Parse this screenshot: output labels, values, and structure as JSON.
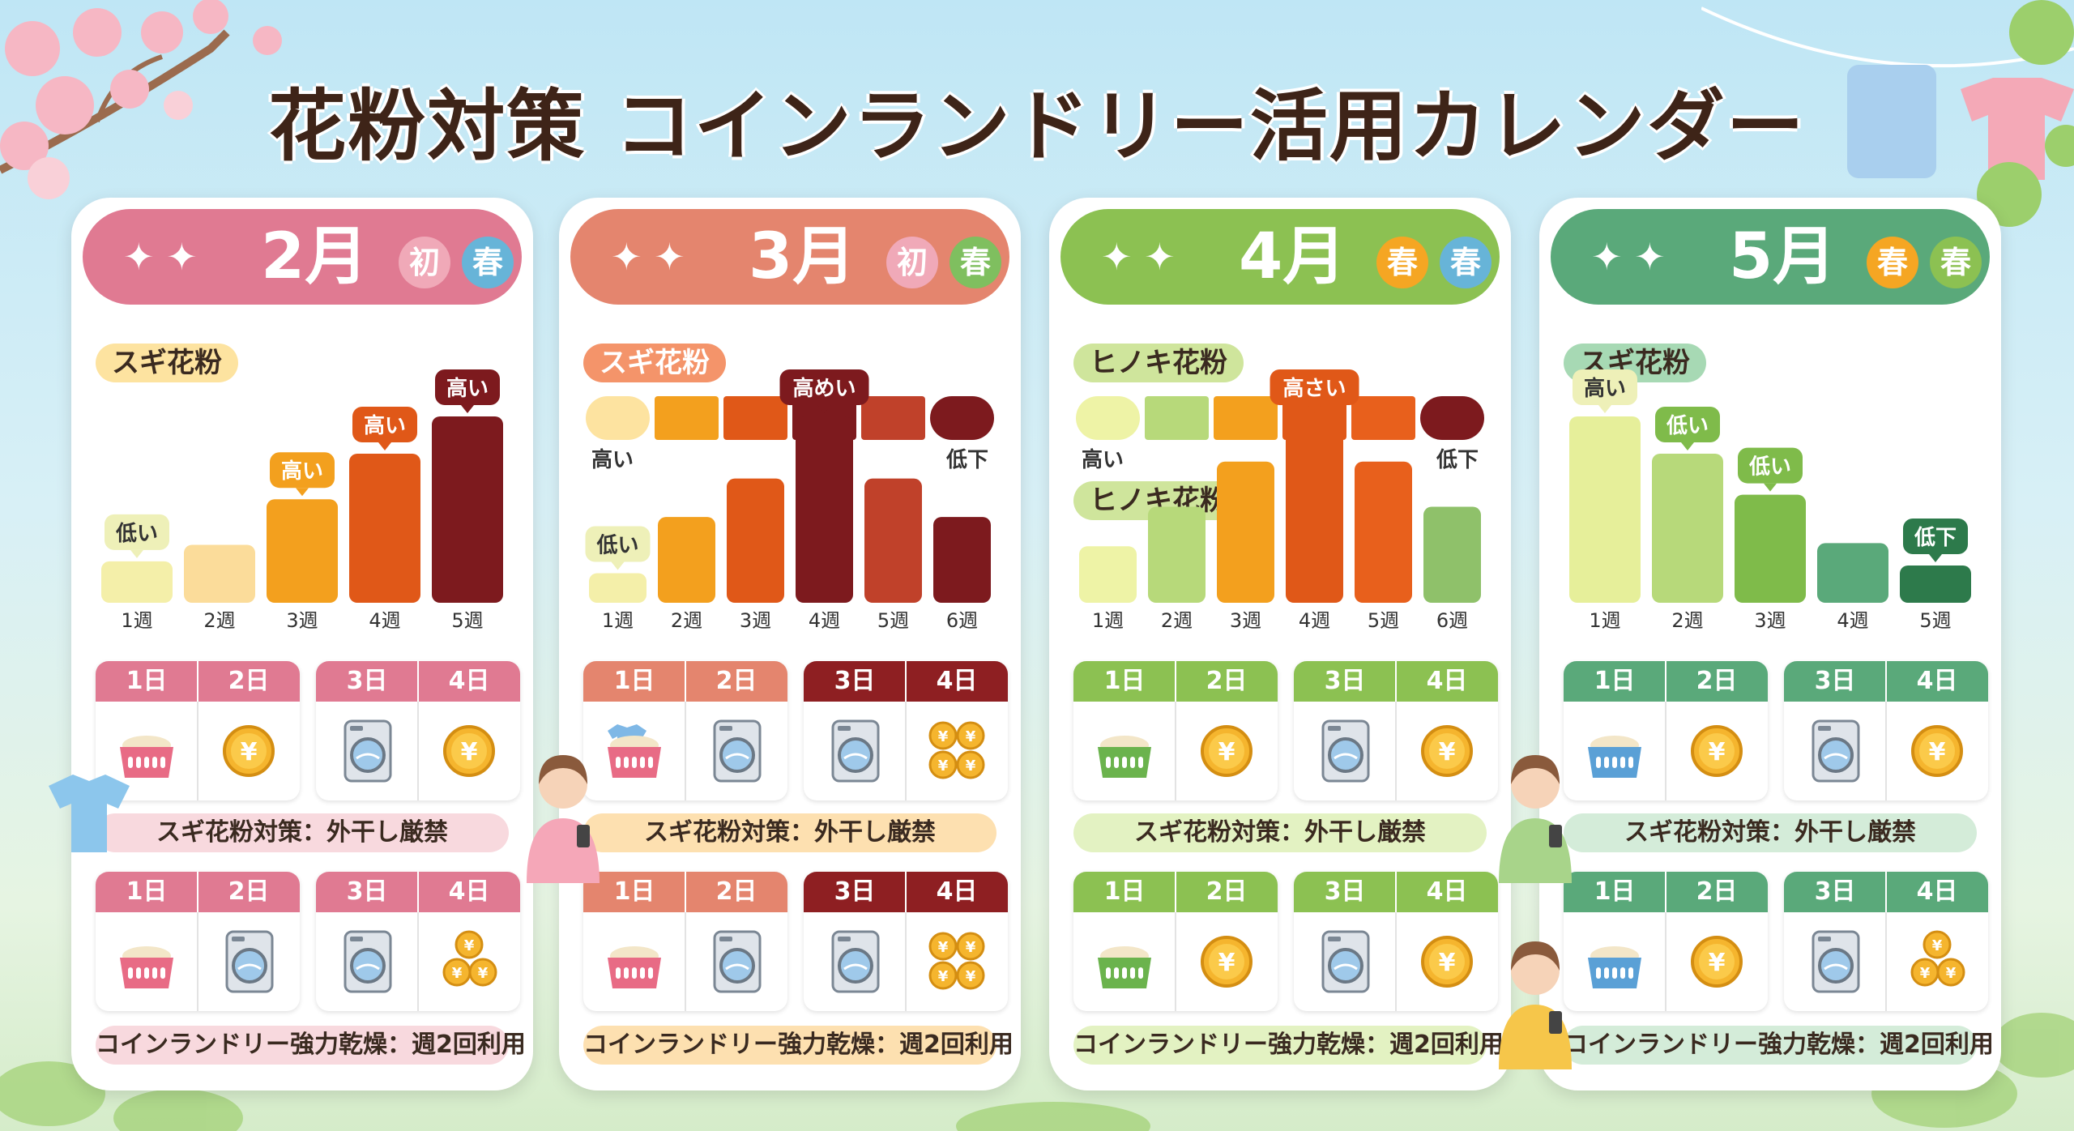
{
  "title": "花粉対策 コインランドリー活用カレンダー",
  "cards": [
    {
      "month": "2月",
      "badges": [
        "初",
        "春"
      ],
      "header_color": "#e07a92",
      "badge_colors": [
        "#f0a9b8",
        "#67b4d8"
      ],
      "pollen_labels": [
        "スギ花粉"
      ],
      "chart_data": {
        "type": "bar",
        "categories": [
          "1週",
          "2週",
          "3週",
          "4週",
          "5週"
        ],
        "values": [
          1,
          1.4,
          2.5,
          3.6,
          4.5
        ],
        "data_labels": [
          "低い",
          "",
          "高い",
          "高い",
          "高い"
        ],
        "colors": [
          "#f4efa9",
          "#fbdc9a",
          "#f3a01e",
          "#e05818",
          "#7d1a1e"
        ]
      },
      "grid_top": {
        "left_days": [
          "1日",
          "2日"
        ],
        "right_days": [
          "3日",
          "4日"
        ],
        "icons": [
          "basket",
          "coin",
          "washer",
          "coin"
        ]
      },
      "grid_top_colors": [
        "#e07a92",
        "#e07a92"
      ],
      "banner_top": "スギ花粉対策：外干し厳禁",
      "banner_top_color": "#f8d9de",
      "grid_bottom": {
        "left_days": [
          "1日",
          "2日"
        ],
        "right_days": [
          "3日",
          "4日"
        ],
        "icons": [
          "basket",
          "washer",
          "washer",
          "coins3"
        ]
      },
      "grid_bottom_colors": [
        "#e07a92",
        "#e07a92"
      ],
      "banner_bottom": "コインランドリー強力乾燥：週2回利用",
      "banner_bottom_color": "#f8d9de"
    },
    {
      "month": "3月",
      "badges": [
        "初",
        "春"
      ],
      "header_color": "#e4856e",
      "badge_colors": [
        "#f0a9b8",
        "#7fbf5f"
      ],
      "pollen_labels": [
        "スギ花粉"
      ],
      "strip": {
        "colors": [
          "#fde3a0",
          "#f3a01e",
          "#e05818",
          "#7d1a1e",
          "#c0412a",
          "#7d1a1e"
        ],
        "left": "高い",
        "right": "低下"
      },
      "chart_data": {
        "type": "bar",
        "categories": [
          "1週",
          "2週",
          "3週",
          "4週",
          "5週",
          "6週"
        ],
        "values": [
          1,
          2.9,
          4.2,
          6.3,
          4.2,
          2.9
        ],
        "data_labels": [
          "低い",
          "",
          "",
          "高めい",
          "",
          ""
        ],
        "colors": [
          "#f4efa9",
          "#f3a01e",
          "#e05818",
          "#7d1a1e",
          "#c0412a",
          "#7d1a1e"
        ]
      },
      "grid_top": {
        "left_days": [
          "1日",
          "2日"
        ],
        "right_days": [
          "3日",
          "4日"
        ],
        "icons": [
          "basket-shirt",
          "washer",
          "washer",
          "coins4"
        ]
      },
      "grid_top_colors": [
        "#e4856e",
        "#8e1f22"
      ],
      "banner_top": "スギ花粉対策：外干し厳禁",
      "banner_top_color": "#fde0b0",
      "grid_bottom": {
        "left_days": [
          "1日",
          "2日"
        ],
        "right_days": [
          "3日",
          "4日"
        ],
        "icons": [
          "basket",
          "washer",
          "washer",
          "coins4"
        ]
      },
      "grid_bottom_colors": [
        "#e4856e",
        "#8e1f22"
      ],
      "banner_bottom": "コインランドリー強力乾燥：週2回利用",
      "banner_bottom_color": "#fde0b0"
    },
    {
      "month": "4月",
      "badges": [
        "春",
        "春"
      ],
      "header_color": "#8cc152",
      "badge_colors": [
        "#f5a623",
        "#67b4d8"
      ],
      "pollen_labels": [
        "ヒノキ花粉",
        "ヒノキ花粉"
      ],
      "strip": {
        "colors": [
          "#eef3a6",
          "#b7d97a",
          "#f3a01e",
          "#e05818",
          "#e8601c",
          "#7d1a1e"
        ],
        "left": "高い",
        "right": "低下"
      },
      "chart_data": {
        "type": "bar",
        "categories": [
          "1週",
          "2週",
          "3週",
          "4週",
          "5週",
          "6週"
        ],
        "values": [
          1,
          1.7,
          2.5,
          3.3,
          2.5,
          1.7
        ],
        "data_labels": [
          "",
          "",
          "",
          "高さい",
          "",
          ""
        ],
        "colors": [
          "#eef3a6",
          "#b7d97a",
          "#f3a01e",
          "#e05818",
          "#e8601c",
          "#8fc16a"
        ]
      },
      "grid_top": {
        "left_days": [
          "1日",
          "2日"
        ],
        "right_days": [
          "3日",
          "4日"
        ],
        "icons": [
          "basket-green",
          "coin",
          "washer",
          "coin"
        ]
      },
      "grid_top_colors": [
        "#8cc152",
        "#8cc152"
      ],
      "banner_top": "スギ花粉対策：外干し厳禁",
      "banner_top_color": "#e3f2c2",
      "grid_bottom": {
        "left_days": [
          "1日",
          "2日"
        ],
        "right_days": [
          "3日",
          "4日"
        ],
        "icons": [
          "basket-green",
          "coin",
          "washer",
          "coin"
        ]
      },
      "grid_bottom_colors": [
        "#8cc152",
        "#8cc152"
      ],
      "banner_bottom": "コインランドリー強力乾燥：週2回利用",
      "banner_bottom_color": "#e3f2c2"
    },
    {
      "month": "5月",
      "badges": [
        "春",
        "春"
      ],
      "header_color": "#5aa97a",
      "badge_colors": [
        "#f5a623",
        "#8cc152"
      ],
      "pollen_labels": [
        "スギ花粉"
      ],
      "chart_data": {
        "type": "bar",
        "categories": [
          "1週",
          "2週",
          "3週",
          "4週",
          "5週"
        ],
        "values": [
          5,
          4,
          2.9,
          1.6,
          1
        ],
        "data_labels": [
          "高い",
          "低い",
          "低い",
          "",
          "低下"
        ],
        "colors": [
          "#e6ef9a",
          "#b7d97a",
          "#7fbb4a",
          "#5aa97a",
          "#2d7a4b"
        ]
      },
      "grid_top": {
        "left_days": [
          "1日",
          "2日"
        ],
        "right_days": [
          "3日",
          "4日"
        ],
        "icons": [
          "basket-blue",
          "coin",
          "washer",
          "coin"
        ]
      },
      "grid_top_colors": [
        "#5aa97a",
        "#5aa97a"
      ],
      "banner_top": "スギ花粉対策：外干し厳禁",
      "banner_top_color": "#d4ecd9",
      "grid_bottom": {
        "left_days": [
          "1日",
          "2日"
        ],
        "right_days": [
          "3日",
          "4日"
        ],
        "icons": [
          "basket-blue",
          "coin",
          "washer",
          "coins3"
        ]
      },
      "grid_bottom_colors": [
        "#5aa97a",
        "#5aa97a"
      ],
      "banner_bottom": "コインランドリー強力乾燥：週2回利用",
      "banner_bottom_color": "#d4ecd9"
    }
  ]
}
